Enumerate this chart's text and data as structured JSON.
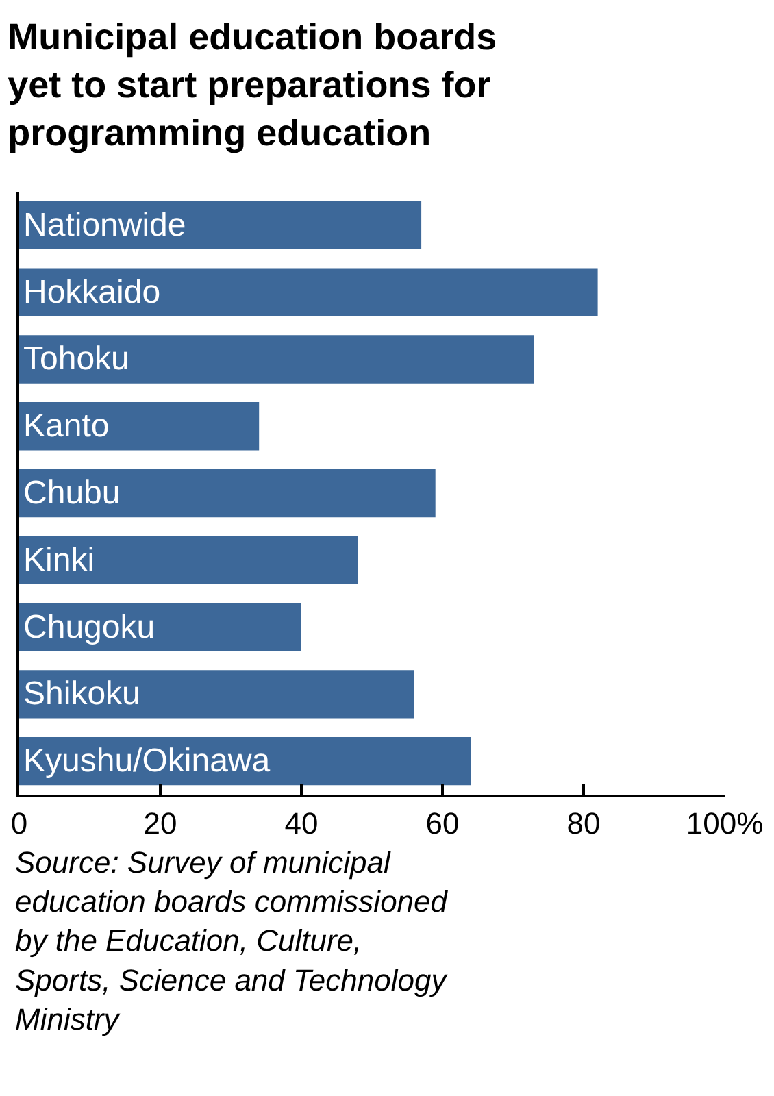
{
  "chart_data": {
    "type": "bar",
    "orientation": "horizontal",
    "title": "Municipal education boards yet to start preparations for programming education",
    "categories": [
      "Nationwide",
      "Hokkaido",
      "Tohoku",
      "Kanto",
      "Chubu",
      "Kinki",
      "Chugoku",
      "Shikoku",
      "Kyushu/Okinawa"
    ],
    "values": [
      57,
      82,
      73,
      34,
      59,
      48,
      40,
      56,
      64
    ],
    "color": "#3d6899",
    "xlim": [
      0,
      100
    ],
    "xticks": [
      0,
      20,
      40,
      60,
      80,
      {
        "value": 100,
        "label": "100%"
      }
    ],
    "tick_labels": "x",
    "annotations": [
      "Source: Survey of municipal education boards commissioned by the Education, Culture, Sports, Science and Technology Ministry"
    ]
  }
}
